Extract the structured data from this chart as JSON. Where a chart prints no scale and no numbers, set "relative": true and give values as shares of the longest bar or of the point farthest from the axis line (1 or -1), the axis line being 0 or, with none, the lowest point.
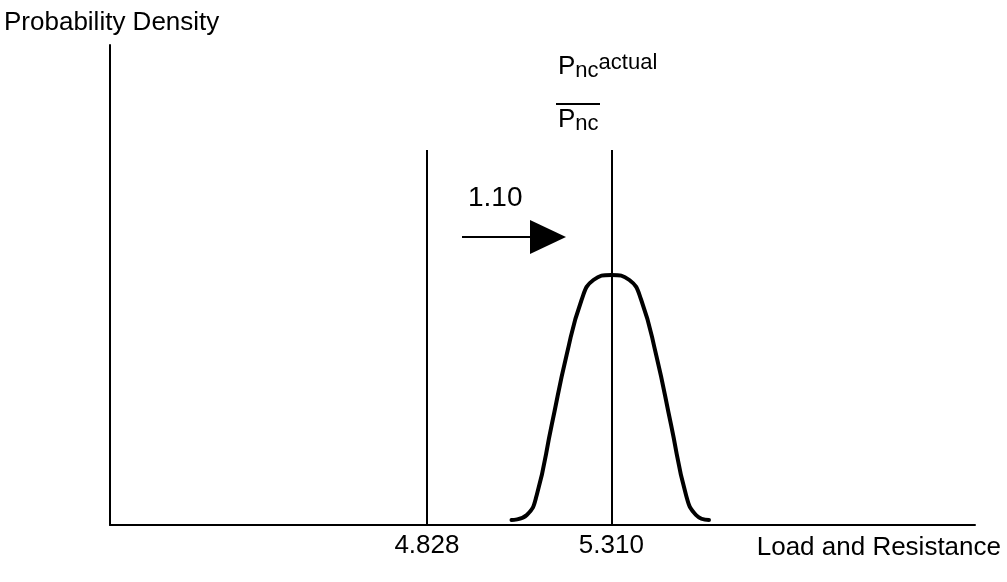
{
  "chart_data": {
    "type": "line",
    "relative": true,
    "xlabel": "Load and Resistance",
    "x": [
      5.049,
      5.089,
      5.115,
      5.154,
      5.193,
      5.232,
      5.263,
      5.31,
      5.357,
      5.388,
      5.427,
      5.466,
      5.505,
      5.531,
      5.565
    ],
    "series": [
      {
        "color": "#000000",
        "values": [
          0.02,
          0.04,
          0.12,
          0.4,
          0.68,
          0.9,
          0.98,
          1,
          0.98,
          0.9,
          0.68,
          0.4,
          0.12,
          0.04,
          0.02
        ]
      }
    ],
    "xlim": [
      4.0,
      6.26
    ],
    "xticks": [
      4.828,
      {
        "value": 5.31,
        "label": "5.310"
      }
    ],
    "ref_lines": [
      {
        "axis": "x",
        "value": 4.828,
        "color": "#000000"
      },
      {
        "axis": "x",
        "value": 5.31,
        "color": "#000000"
      }
    ],
    "annotations": [
      "P$_{nc}$$^{actual}$",
      "P$_{nc}$",
      "1.10",
      "Probability Density"
    ],
    "grid": false,
    "marker": "none",
    "line_style": "solid",
    "tick_labels": "x"
  }
}
